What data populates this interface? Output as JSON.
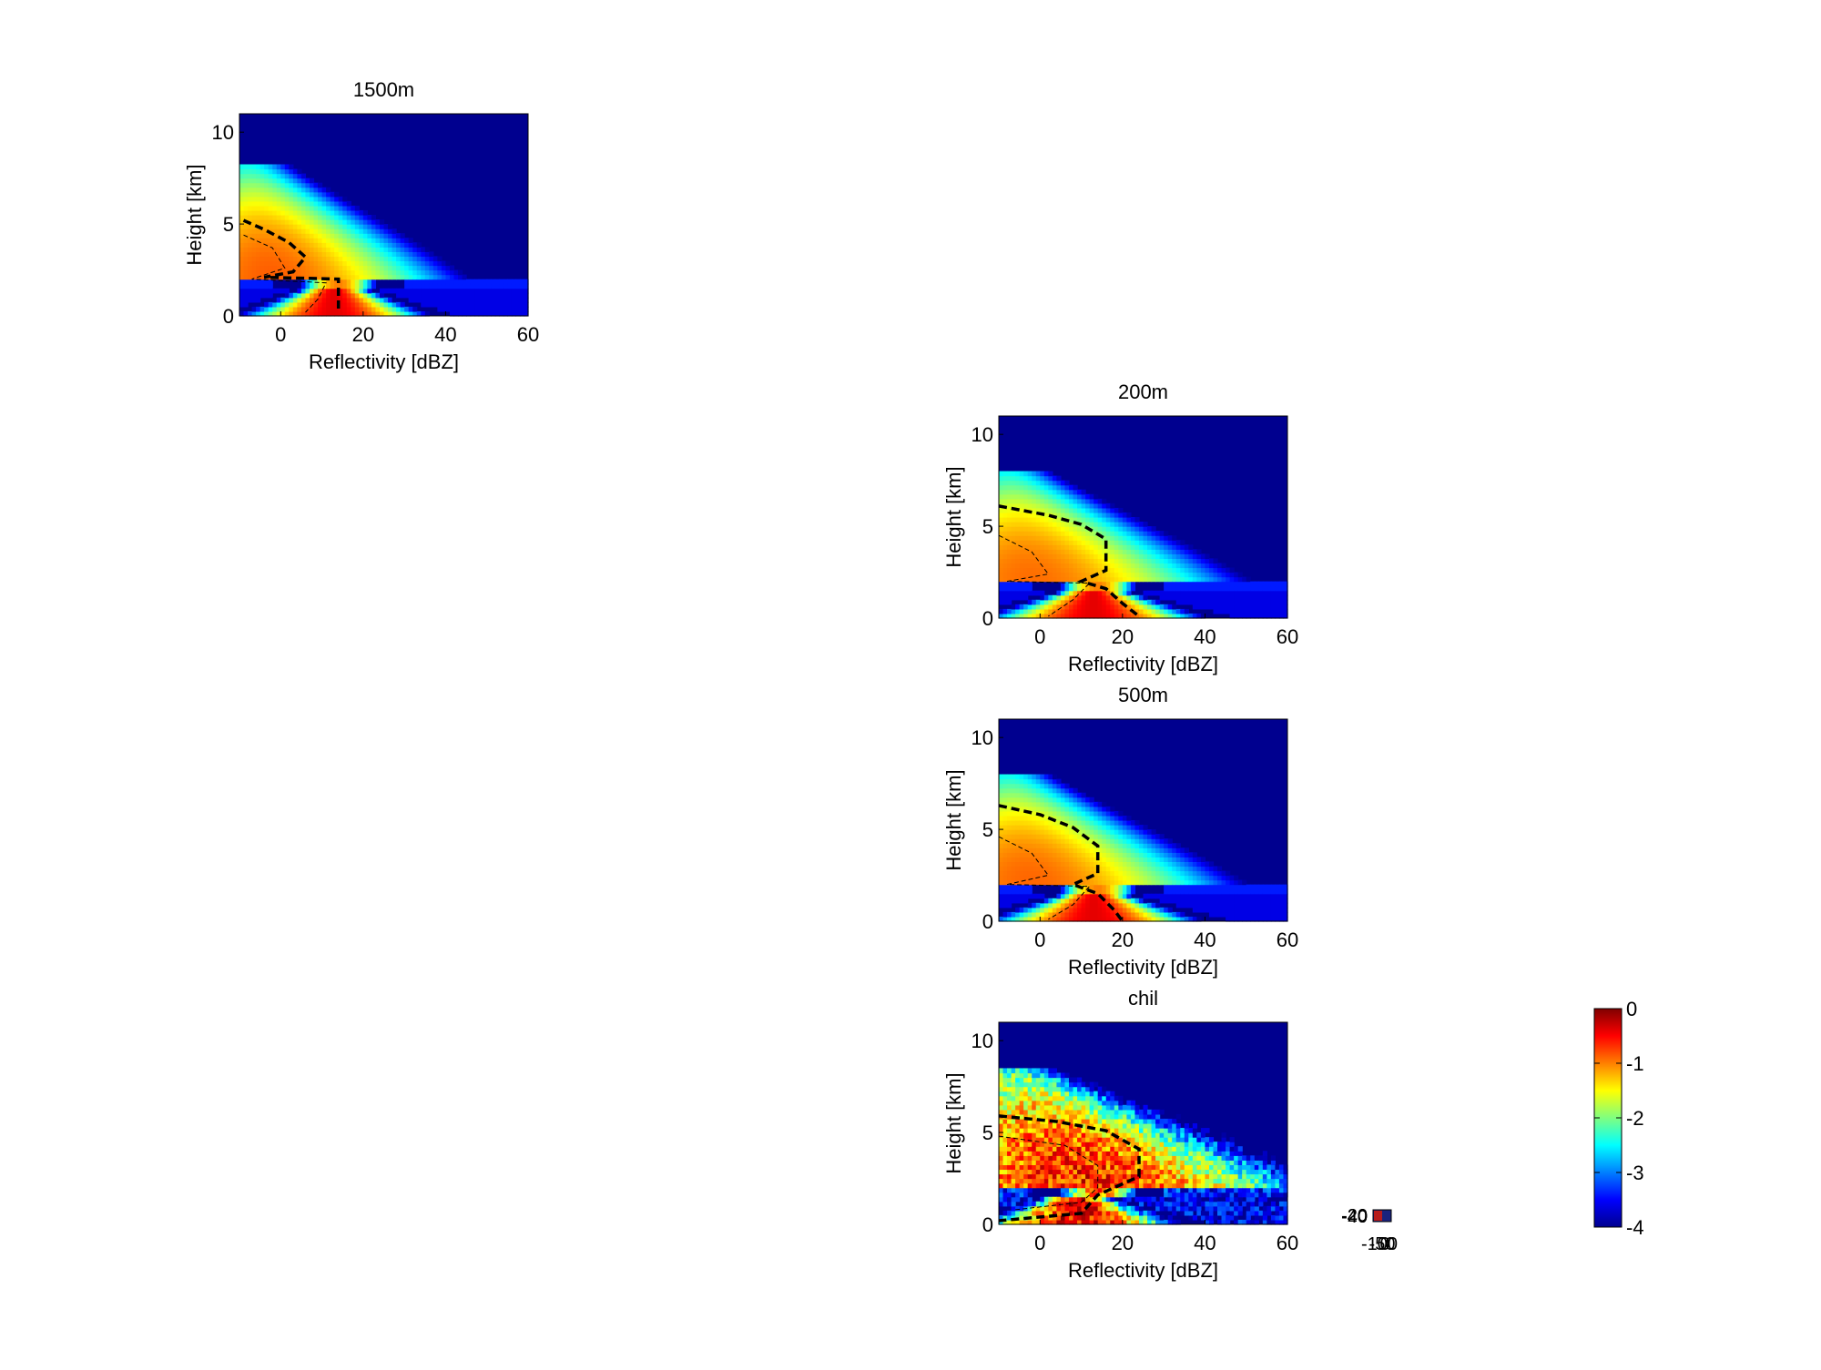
{
  "chart_data": [
    {
      "type": "heatmap",
      "title": "1500m",
      "xlabel": "Reflectivity [dBZ]",
      "ylabel": "Height [km]",
      "xlim": [
        -10,
        60
      ],
      "ylim": [
        0,
        11
      ],
      "xticks": [
        0,
        20,
        40,
        60
      ],
      "yticks": [
        0,
        5,
        10
      ],
      "profile": {
        "spread_x": 28,
        "top_km": 8.2,
        "upper_dens": 0.55,
        "lower_dens": 0.8
      },
      "contour_thick": [
        [
          -9,
          5.2
        ],
        [
          -4,
          4.7
        ],
        [
          2,
          4.0
        ],
        [
          6,
          3.2
        ],
        [
          3,
          2.4
        ],
        [
          -4,
          2.1
        ],
        [
          14,
          2.0
        ],
        [
          14,
          1.2
        ],
        [
          14,
          0.3
        ]
      ],
      "contour_thin": [
        [
          -9,
          4.4
        ],
        [
          -2,
          3.7
        ],
        [
          1,
          2.6
        ],
        [
          -7,
          2.0
        ],
        [
          11,
          1.8
        ],
        [
          9,
          0.9
        ],
        [
          6,
          0.2
        ]
      ]
    },
    {
      "type": "heatmap",
      "title": "200m",
      "xlabel": "Reflectivity [dBZ]",
      "ylabel": "Height [km]",
      "xlim": [
        -10,
        60
      ],
      "ylim": [
        0,
        11
      ],
      "xticks": [
        0,
        20,
        40,
        60
      ],
      "yticks": [
        0,
        5,
        10
      ],
      "profile": {
        "spread_x": 33,
        "top_km": 8.0,
        "upper_dens": 0.45,
        "lower_dens": 1.0
      },
      "contour_thick": [
        [
          -10,
          6.1
        ],
        [
          2,
          5.6
        ],
        [
          10,
          5.1
        ],
        [
          16,
          4.3
        ],
        [
          16,
          2.6
        ],
        [
          10,
          2.0
        ],
        [
          16,
          1.6
        ],
        [
          20,
          0.8
        ],
        [
          24,
          0.1
        ]
      ],
      "contour_thin": [
        [
          -10,
          4.5
        ],
        [
          -2,
          3.6
        ],
        [
          2,
          2.4
        ],
        [
          -8,
          2.0
        ],
        [
          12,
          1.9
        ],
        [
          8,
          1.0
        ],
        [
          2,
          0.1
        ]
      ]
    },
    {
      "type": "heatmap",
      "title": "500m",
      "xlabel": "Reflectivity [dBZ]",
      "ylabel": "Height [km]",
      "xlim": [
        -10,
        60
      ],
      "ylim": [
        0,
        11
      ],
      "xticks": [
        0,
        20,
        40,
        60
      ],
      "yticks": [
        0,
        5,
        10
      ],
      "profile": {
        "spread_x": 32,
        "top_km": 8.0,
        "upper_dens": 0.5,
        "lower_dens": 0.95
      },
      "contour_thick": [
        [
          -10,
          6.3
        ],
        [
          0,
          5.8
        ],
        [
          8,
          5.1
        ],
        [
          14,
          4.1
        ],
        [
          14,
          2.6
        ],
        [
          8,
          2.0
        ],
        [
          14,
          1.5
        ],
        [
          18,
          0.6
        ],
        [
          20,
          0.0
        ]
      ],
      "contour_thin": [
        [
          -10,
          4.6
        ],
        [
          -2,
          3.7
        ],
        [
          2,
          2.5
        ],
        [
          -8,
          2.0
        ],
        [
          12,
          1.9
        ],
        [
          8,
          0.9
        ],
        [
          2,
          0.1
        ]
      ]
    },
    {
      "type": "heatmap",
      "title": "chil",
      "xlabel": "Reflectivity [dBZ]",
      "ylabel": "Height [km]",
      "xlim": [
        -10,
        60
      ],
      "ylim": [
        0,
        11
      ],
      "xticks": [
        0,
        20,
        40,
        60
      ],
      "yticks": [
        0,
        5,
        10
      ],
      "profile": {
        "spread_x": 36,
        "top_km": 8.4,
        "upper_dens": 0.9,
        "lower_dens": 0.9,
        "noisy": true
      },
      "contour_thick": [
        [
          -10,
          5.9
        ],
        [
          4,
          5.6
        ],
        [
          16,
          5.1
        ],
        [
          24,
          4.1
        ],
        [
          24,
          2.6
        ],
        [
          18,
          2.0
        ],
        [
          14,
          1.6
        ],
        [
          10,
          0.6
        ],
        [
          -10,
          0.2
        ]
      ],
      "contour_thin": [
        [
          -10,
          4.8
        ],
        [
          6,
          4.3
        ],
        [
          14,
          3.2
        ],
        [
          14,
          2.0
        ],
        [
          10,
          1.2
        ],
        [
          -6,
          0.8
        ]
      ]
    }
  ],
  "colorbar": {
    "ticks": [
      "0",
      "-1",
      "-2",
      "-3",
      "-4"
    ],
    "range": [
      -4,
      0
    ],
    "colormap": "jet"
  },
  "mini_legend": {
    "tick_glyphs": [
      "-100",
      "-50",
      "0"
    ],
    "stacked_labels": [
      "40",
      "20",
      "0",
      "-20",
      "-40"
    ]
  }
}
